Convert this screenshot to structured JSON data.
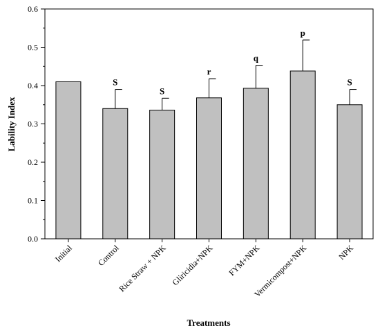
{
  "chart_data": {
    "type": "bar",
    "xlabel": "Treatments",
    "ylabel": "Lability Index",
    "ylim": [
      0,
      0.6
    ],
    "yticks": [
      "0.0",
      "0.1",
      "0.2",
      "0.3",
      "0.4",
      "0.5",
      "0.6"
    ],
    "grid": false,
    "bar_color": "#c0c0c0",
    "categories": [
      "Initial",
      "Control",
      "Rice Straw + NPK",
      "Gliricidia+NPK",
      "FYM+NPK",
      "Vermicompost+NPK",
      "NPK"
    ],
    "values": [
      0.41,
      0.34,
      0.336,
      0.368,
      0.393,
      0.438,
      0.35
    ],
    "error_upper": [
      null,
      0.05,
      0.031,
      0.05,
      0.06,
      0.081,
      0.04
    ],
    "significance_labels": [
      "",
      "S",
      "S",
      "r",
      "q",
      "p",
      "S"
    ]
  }
}
